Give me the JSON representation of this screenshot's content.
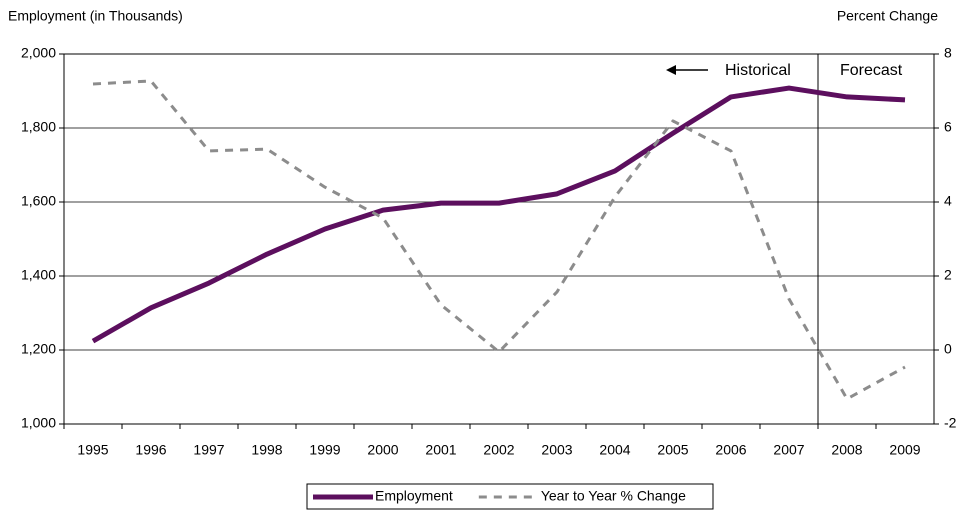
{
  "chart_data": {
    "type": "line",
    "y_label": "Employment (in Thousands)",
    "y2_label": "Percent Change",
    "annotations": [
      "Historical",
      "Forecast"
    ],
    "categories": [
      "1995",
      "1996",
      "1997",
      "1998",
      "1999",
      "2000",
      "2001",
      "2002",
      "2003",
      "2004",
      "2005",
      "2006",
      "2007",
      "2008",
      "2009"
    ],
    "series": [
      {
        "name": "Employment",
        "color": "#5c0f5e",
        "values": [
          1224,
          1314,
          1381,
          1459,
          1527,
          1578,
          1597,
          1597,
          1622,
          1684,
          1786,
          1884,
          1908,
          1884,
          1876
        ]
      },
      {
        "name": "Year to Year % Change",
        "color": "#8c8c8c",
        "axis": "y2",
        "dashed": true,
        "values": [
          7.19,
          7.27,
          5.38,
          5.43,
          4.4,
          3.57,
          1.22,
          -0.05,
          1.57,
          4.14,
          6.19,
          5.38,
          1.38,
          -1.32,
          -0.46
        ]
      }
    ],
    "ylim": [
      1000,
      2000
    ],
    "yticks": [
      {
        "value": 1000,
        "label": "1,000"
      },
      {
        "value": 1200,
        "label": "1,200"
      },
      {
        "value": 1400,
        "label": "1,400"
      },
      {
        "value": 1600,
        "label": "1,600"
      },
      {
        "value": 1800,
        "label": "1,800"
      },
      {
        "value": 2000,
        "label": "2,000"
      }
    ],
    "y2lim": [
      -2,
      8
    ],
    "y2ticks": [
      -2,
      0,
      2,
      4,
      6,
      8
    ],
    "grid": true
  }
}
